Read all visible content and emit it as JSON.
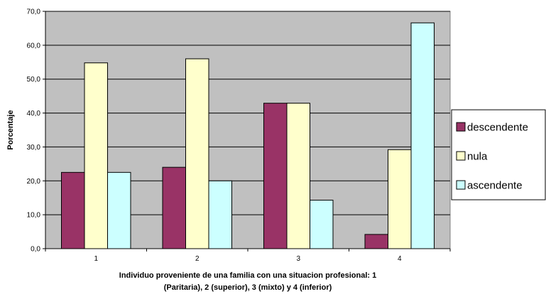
{
  "chart_data": {
    "type": "bar",
    "title": "",
    "xlabel_lines": [
      "Individuo proveniente de una familia con una situacion profesional: 1",
      "(Paritaria), 2 (superior), 3 (mixto) y 4 (inferior)"
    ],
    "ylabel": "Porcentaje",
    "ylim": [
      0,
      70
    ],
    "yticks": [
      "0,0",
      "10,0",
      "20,0",
      "30,0",
      "40,0",
      "50,0",
      "60,0",
      "70,0"
    ],
    "categories": [
      "1",
      "2",
      "3",
      "4"
    ],
    "grid": true,
    "legend_position": "right",
    "plot_background": "#c0c0c0",
    "series": [
      {
        "name": "descendente",
        "color": "#993366",
        "values": [
          22.5,
          24.0,
          42.9,
          4.2
        ]
      },
      {
        "name": "nula",
        "color": "#ffffcc",
        "values": [
          54.8,
          56.0,
          42.9,
          29.2
        ]
      },
      {
        "name": "ascendente",
        "color": "#ccffff",
        "values": [
          22.5,
          20.0,
          14.3,
          66.6
        ]
      }
    ]
  }
}
